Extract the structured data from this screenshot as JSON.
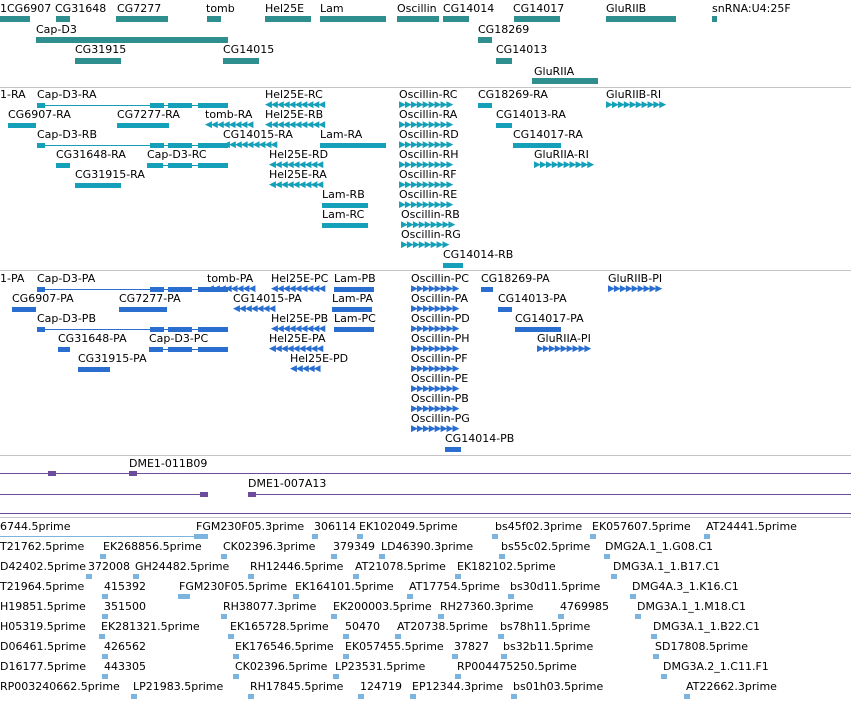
{
  "genes": [
    {
      "label": "1CG6907"
    },
    {
      "label": "CG31648"
    },
    {
      "label": "CG7277"
    },
    {
      "label": "tomb"
    },
    {
      "label": "Hel25E"
    },
    {
      "label": "Lam"
    },
    {
      "label": "Oscillin"
    },
    {
      "label": "CG14014"
    },
    {
      "label": "CG14017"
    },
    {
      "label": "GluRIIB"
    },
    {
      "label": "snRNA:U4:25F"
    },
    {
      "label": "Cap-D3"
    },
    {
      "label": "CG18269"
    },
    {
      "label": "CG31915"
    },
    {
      "label": "CG14015"
    },
    {
      "label": "CG14013"
    },
    {
      "label": "GluRIIA"
    }
  ],
  "transcripts": [
    {
      "label": "1-RA"
    },
    {
      "label": "Cap-D3-RA"
    },
    {
      "label": "Hel25E-RC"
    },
    {
      "label": "Oscillin-RC"
    },
    {
      "label": "CG18269-RA"
    },
    {
      "label": "GluRIIB-RI"
    },
    {
      "label": "CG6907-RA"
    },
    {
      "label": "CG7277-RA"
    },
    {
      "label": "tomb-RA"
    },
    {
      "label": "Hel25E-RB"
    },
    {
      "label": "Oscillin-RA"
    },
    {
      "label": "CG14013-RA"
    },
    {
      "label": "Cap-D3-RB"
    },
    {
      "label": "CG14015-RA"
    },
    {
      "label": "Lam-RA"
    },
    {
      "label": "Oscillin-RD"
    },
    {
      "label": "CG14017-RA"
    },
    {
      "label": "CG31648-RA"
    },
    {
      "label": "Cap-D3-RC"
    },
    {
      "label": "Hel25E-RD"
    },
    {
      "label": "Oscillin-RH"
    },
    {
      "label": "GluRIIA-RI"
    },
    {
      "label": "CG31915-RA"
    },
    {
      "label": "Hel25E-RA"
    },
    {
      "label": "Oscillin-RF"
    },
    {
      "label": "Lam-RB"
    },
    {
      "label": "Oscillin-RE"
    },
    {
      "label": "Lam-RC"
    },
    {
      "label": "Oscillin-RB"
    },
    {
      "label": "Oscillin-RG"
    },
    {
      "label": "CG14014-RB"
    }
  ],
  "peptides": [
    {
      "label": "1-PA"
    },
    {
      "label": "Cap-D3-PA"
    },
    {
      "label": "tomb-PA"
    },
    {
      "label": "Hel25E-PC"
    },
    {
      "label": "Lam-PB"
    },
    {
      "label": "Oscillin-PC"
    },
    {
      "label": "CG18269-PA"
    },
    {
      "label": "GluRIIB-PI"
    },
    {
      "label": "CG6907-PA"
    },
    {
      "label": "CG7277-PA"
    },
    {
      "label": "CG14015-PA"
    },
    {
      "label": "Lam-PA"
    },
    {
      "label": "Oscillin-PA"
    },
    {
      "label": "CG14013-PA"
    },
    {
      "label": "Cap-D3-PB"
    },
    {
      "label": "Hel25E-PB"
    },
    {
      "label": "Lam-PC"
    },
    {
      "label": "Oscillin-PD"
    },
    {
      "label": "CG14017-PA"
    },
    {
      "label": "CG31648-PA"
    },
    {
      "label": "Cap-D3-PC"
    },
    {
      "label": "Hel25E-PA"
    },
    {
      "label": "Oscillin-PH"
    },
    {
      "label": "GluRIIA-PI"
    },
    {
      "label": "CG31915-PA"
    },
    {
      "label": "Hel25E-PD"
    },
    {
      "label": "Oscillin-PF"
    },
    {
      "label": "Oscillin-PE"
    },
    {
      "label": "Oscillin-PB"
    },
    {
      "label": "Oscillin-PG"
    },
    {
      "label": "CG14014-PB"
    }
  ],
  "bacs": [
    {
      "label": "DME1-011B09"
    },
    {
      "label": "DME1-007A13"
    }
  ],
  "ests": [
    {
      "label": "6744.5prime"
    },
    {
      "label": "FGM230F05.3prime"
    },
    {
      "label": "306114"
    },
    {
      "label": "EK102049.5prime"
    },
    {
      "label": "bs45f02.3prime"
    },
    {
      "label": "EK057607.5prime"
    },
    {
      "label": "AT24441.5prime"
    },
    {
      "label": "T21762.5prime"
    },
    {
      "label": "EK268856.5prime"
    },
    {
      "label": "CK02396.3prime"
    },
    {
      "label": "379349"
    },
    {
      "label": "LD46390.3prime"
    },
    {
      "label": "bs55c02.5prime"
    },
    {
      "label": "DMG2A.1_1.G08.C1"
    },
    {
      "label": "D42402.5prime"
    },
    {
      "label": "372008"
    },
    {
      "label": "GH24482.5prime"
    },
    {
      "label": "RH12446.5prime"
    },
    {
      "label": "AT21078.5prime"
    },
    {
      "label": "EK182102.5prime"
    },
    {
      "label": "DMG3A.1_1.B17.C1"
    },
    {
      "label": "T21964.5prime"
    },
    {
      "label": "415392"
    },
    {
      "label": "FGM230F05.5prime"
    },
    {
      "label": "EK164101.5prime"
    },
    {
      "label": "AT17754.5prime"
    },
    {
      "label": "bs30d11.5prime"
    },
    {
      "label": "DMG4A.3_1.K16.C1"
    },
    {
      "label": "H19851.5prime"
    },
    {
      "label": "351500"
    },
    {
      "label": "RH38077.3prime"
    },
    {
      "label": "EK200003.5prime"
    },
    {
      "label": "RH27360.3prime"
    },
    {
      "label": "4769985"
    },
    {
      "label": "DMG3A.1_1.M18.C1"
    },
    {
      "label": "H05319.5prime"
    },
    {
      "label": "EK281321.5prime"
    },
    {
      "label": "EK165728.5prime"
    },
    {
      "label": "50470"
    },
    {
      "label": "AT20738.5prime"
    },
    {
      "label": "bs78h11.5prime"
    },
    {
      "label": "DMG3A.1_1.B22.C1"
    },
    {
      "label": "D06461.5prime"
    },
    {
      "label": "426562"
    },
    {
      "label": "EK176546.5prime"
    },
    {
      "label": "EK057455.5prime"
    },
    {
      "label": "37827"
    },
    {
      "label": "bs32b11.5prime"
    },
    {
      "label": "SD17808.5prime"
    },
    {
      "label": "D16177.5prime"
    },
    {
      "label": "443305"
    },
    {
      "label": "CK02396.5prime"
    },
    {
      "label": "LP23531.5prime"
    },
    {
      "label": "RP004475250.5prime"
    },
    {
      "label": "DMG3A.2_1.C11.F1"
    },
    {
      "label": "RP003240662.5prime"
    },
    {
      "label": "LP21983.5prime"
    },
    {
      "label": "RH17845.5prime"
    },
    {
      "label": "124719"
    },
    {
      "label": "EP12344.3prime"
    },
    {
      "label": "bs01h03.5prime"
    },
    {
      "label": "AT22662.3prime"
    }
  ],
  "colors": {
    "gene": "#2f8f8f",
    "transcript": "#14a0b8",
    "peptide": "#2a6fd0",
    "bac": "#6e4c9c",
    "est": "#7ab4df"
  }
}
